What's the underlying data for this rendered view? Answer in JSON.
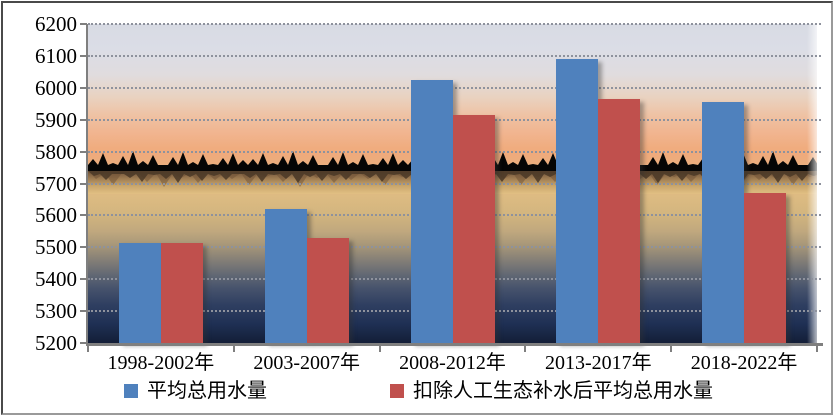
{
  "chart_data": {
    "type": "bar",
    "title": "",
    "categories": [
      "1998-2002年",
      "2003-2007年",
      "2008-2012年",
      "2013-2017年",
      "2018-2022年"
    ],
    "series": [
      {
        "name": "平均总用水量",
        "color": "#4F81BD",
        "values": [
          5515,
          5620,
          6025,
          6090,
          5955
        ]
      },
      {
        "name": "扣除人工生态补水后平均总用水量",
        "color": "#C0504D",
        "values": [
          5515,
          5530,
          5915,
          5965,
          5670
        ]
      }
    ],
    "ylim": [
      5200,
      6200
    ],
    "ytick_step": 100,
    "yticks": [
      6200,
      6100,
      6000,
      5900,
      5800,
      5700,
      5600,
      5500,
      5400,
      5300,
      5200
    ],
    "xlabel": "",
    "ylabel": "",
    "grid": "horizontal-dotted",
    "legend_position": "bottom",
    "plot_background": "sunset-lake-photo"
  },
  "colors": {
    "axis": "#7F7F7F",
    "gridline": "#8E929D",
    "tick_label": "#000000"
  }
}
